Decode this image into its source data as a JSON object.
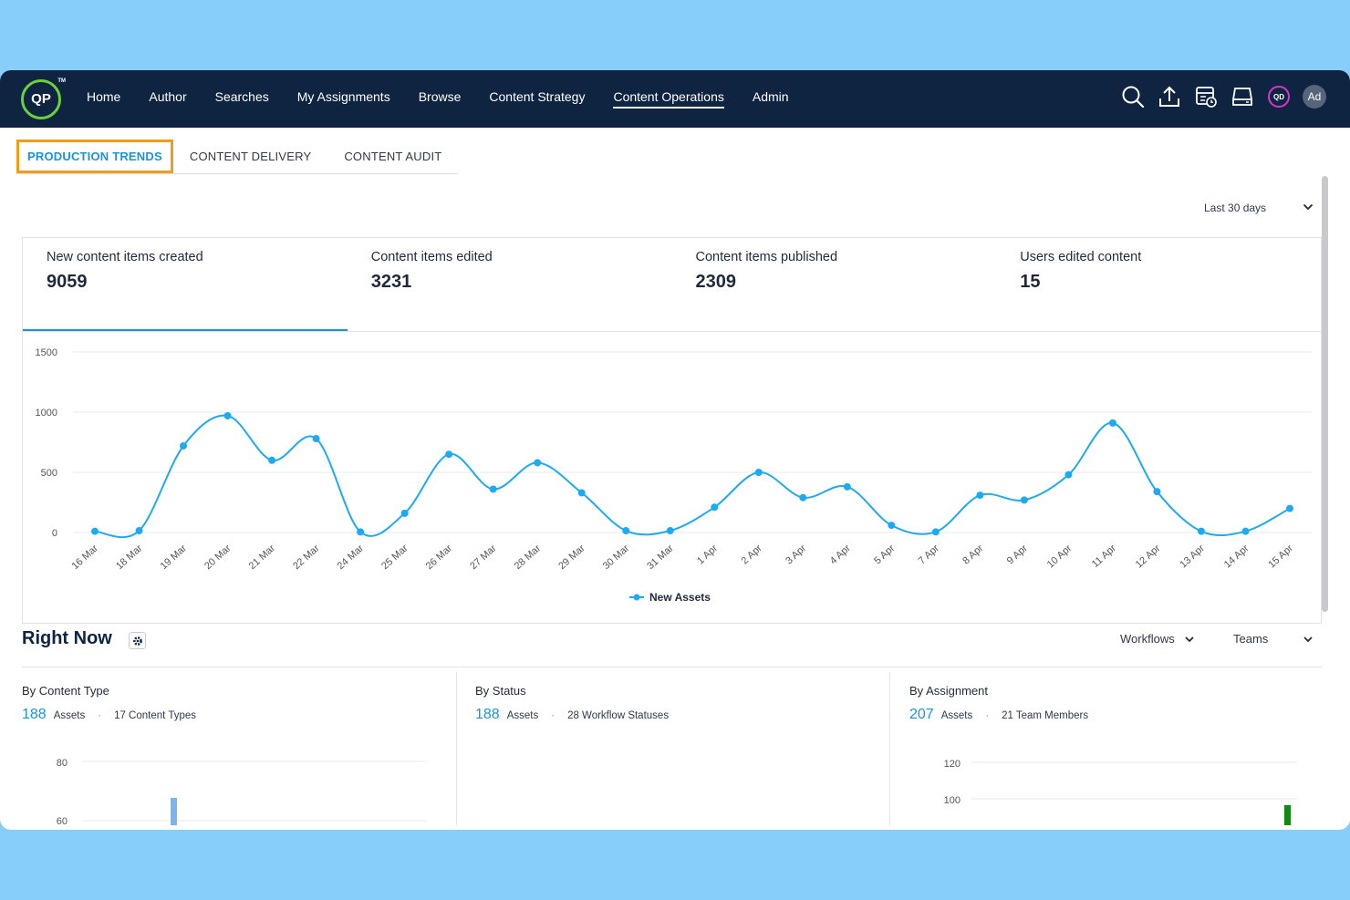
{
  "nav": {
    "logo_text": "QP",
    "logo_tm": "TM",
    "items": [
      {
        "label": "Home"
      },
      {
        "label": "Author"
      },
      {
        "label": "Searches"
      },
      {
        "label": "My Assignments"
      },
      {
        "label": "Browse"
      },
      {
        "label": "Content Strategy"
      },
      {
        "label": "Content Operations"
      },
      {
        "label": "Admin"
      }
    ],
    "active_item": "Content Operations",
    "icons": [
      "search-icon",
      "upload-icon",
      "scheduler-icon",
      "inbox-icon"
    ],
    "badge_text": "QD",
    "avatar_text": "Ad"
  },
  "tabs": [
    {
      "label": "PRODUCTION TRENDS"
    },
    {
      "label": "CONTENT DELIVERY"
    },
    {
      "label": "CONTENT AUDIT"
    }
  ],
  "active_tab": "PRODUCTION TRENDS",
  "date_range": "Last 30 days",
  "stats": [
    {
      "label": "New content items created",
      "value": "9059"
    },
    {
      "label": "Content items edited",
      "value": "3231"
    },
    {
      "label": "Content items published",
      "value": "2309"
    },
    {
      "label": "Users edited content",
      "value": "15"
    }
  ],
  "chart_data": {
    "type": "line",
    "categories": [
      "16 Mar",
      "18 Mar",
      "19 Mar",
      "20 Mar",
      "21 Mar",
      "22 Mar",
      "24 Mar",
      "25 Mar",
      "26 Mar",
      "27 Mar",
      "28 Mar",
      "29 Mar",
      "30 Mar",
      "31 Mar",
      "1 Apr",
      "2 Apr",
      "3 Apr",
      "4 Apr",
      "5 Apr",
      "7 Apr",
      "8 Apr",
      "9 Apr",
      "10 Apr",
      "11 Apr",
      "12 Apr",
      "13 Apr",
      "14 Apr",
      "15 Apr"
    ],
    "series": [
      {
        "name": "New Assets",
        "values": [
          10,
          15,
          720,
          970,
          600,
          780,
          5,
          160,
          650,
          360,
          580,
          330,
          15,
          15,
          210,
          500,
          290,
          380,
          60,
          5,
          310,
          270,
          480,
          910,
          340,
          10,
          10,
          200
        ]
      }
    ],
    "yticks": [
      "1500",
      "1000",
      "500",
      "0"
    ],
    "ylim": [
      0,
      1500
    ],
    "grid": true,
    "legend": "bottom",
    "color": "#1eaaf1"
  },
  "right_now": {
    "title": "Right Now",
    "filters": [
      "Workflows",
      "Teams"
    ],
    "panels": [
      {
        "title": "By Content Type",
        "count": "188",
        "count_label": "Assets",
        "detail": "17 Content Types",
        "yticks": [
          "80",
          "60"
        ]
      },
      {
        "title": "By Status",
        "count": "188",
        "count_label": "Assets",
        "detail": "28 Workflow Statuses",
        "yticks": []
      },
      {
        "title": "By Assignment",
        "count": "207",
        "count_label": "Assets",
        "detail": "21 Team Members",
        "yticks": [
          "120",
          "100"
        ]
      }
    ]
  }
}
